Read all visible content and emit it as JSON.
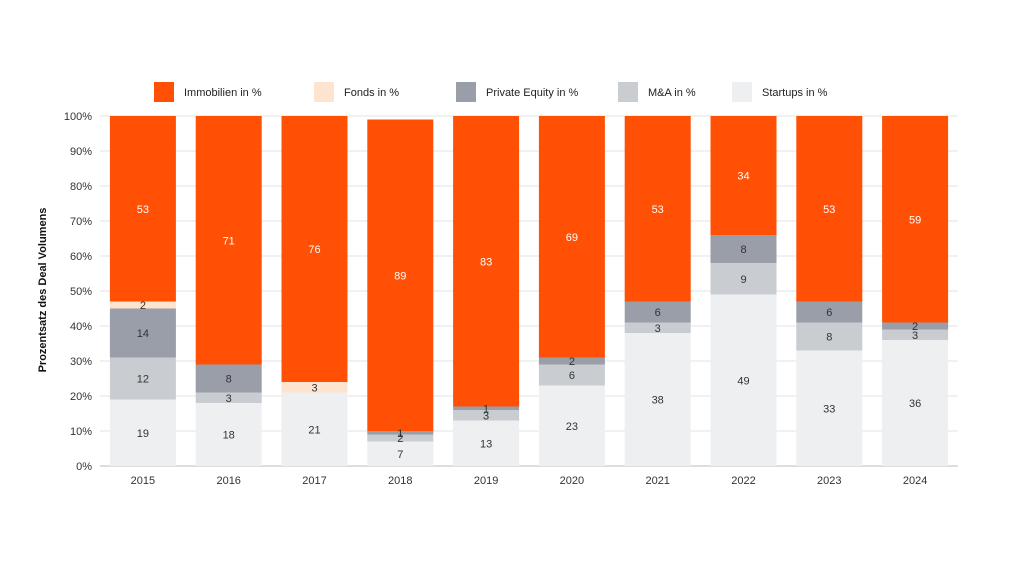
{
  "chart_data": {
    "type": "bar",
    "stacked": true,
    "normalized_percent": true,
    "categories": [
      "2015",
      "2016",
      "2017",
      "2018",
      "2019",
      "2020",
      "2021",
      "2022",
      "2023",
      "2024"
    ],
    "series": [
      {
        "name": "Startups in %",
        "color": "#eeeff0",
        "label_color": "#333333",
        "values": [
          19,
          18,
          21,
          7,
          13,
          23,
          38,
          49,
          33,
          36
        ]
      },
      {
        "name": "M&A in %",
        "color": "#c9cdd1",
        "label_color": "#333333",
        "values": [
          12,
          3,
          0,
          2,
          3,
          6,
          3,
          9,
          8,
          3
        ]
      },
      {
        "name": "Private Equity in %",
        "color": "#9a9ea8",
        "label_color": "#333333",
        "values": [
          14,
          8,
          0,
          1,
          1,
          2,
          6,
          8,
          6,
          2
        ]
      },
      {
        "name": "Fonds in %",
        "color": "#fde4cf",
        "label_color": "#333333",
        "values": [
          2,
          0,
          3,
          0,
          0,
          0,
          0,
          0,
          0,
          0
        ]
      },
      {
        "name": "Immobilien in %",
        "color": "#ff5005",
        "label_color": "#ffffff",
        "values": [
          53,
          71,
          76,
          89,
          83,
          69,
          53,
          34,
          53,
          59
        ]
      }
    ],
    "legend_order": [
      "Immobilien in %",
      "Fonds in %",
      "Private Equity in %",
      "M&A in %",
      "Startups in %"
    ],
    "legend_position": "top",
    "ylabel": "Prozentsatz des Deal Volumens",
    "xlabel": "",
    "ylim": [
      0,
      100
    ],
    "yticks": [
      "0%",
      "10%",
      "20%",
      "30%",
      "40%",
      "50%",
      "60%",
      "70%",
      "80%",
      "90%",
      "100%"
    ],
    "grid": true
  }
}
